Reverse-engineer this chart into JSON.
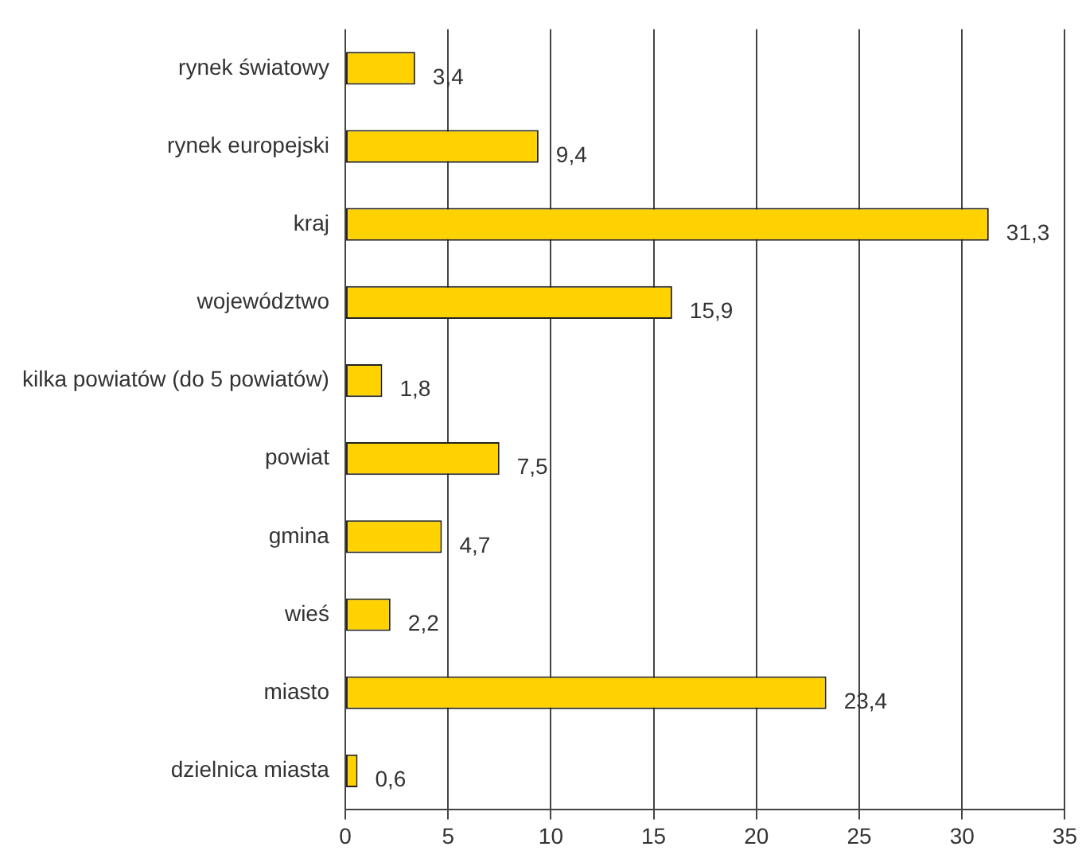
{
  "chart_data": {
    "type": "bar",
    "orientation": "horizontal",
    "categories": [
      "rynek światowy",
      "rynek europejski",
      "kraj",
      "województwo",
      "kilka powiatów (do 5 powiatów)",
      "powiat",
      "gmina",
      "wieś",
      "miasto",
      "dzielnica miasta"
    ],
    "values": [
      3.4,
      9.4,
      31.3,
      15.9,
      1.8,
      7.5,
      4.7,
      2.2,
      23.4,
      0.6
    ],
    "value_labels": [
      "3,4",
      "9,4",
      "31,3",
      "15,9",
      "1,8",
      "7,5",
      "4,7",
      "2,2",
      "23,4",
      "0,6"
    ],
    "color": "#ffd200",
    "xlim": [
      0,
      35
    ],
    "xticks": [
      0,
      5,
      10,
      15,
      20,
      25,
      30,
      35
    ],
    "grid": "x",
    "legend": false
  }
}
